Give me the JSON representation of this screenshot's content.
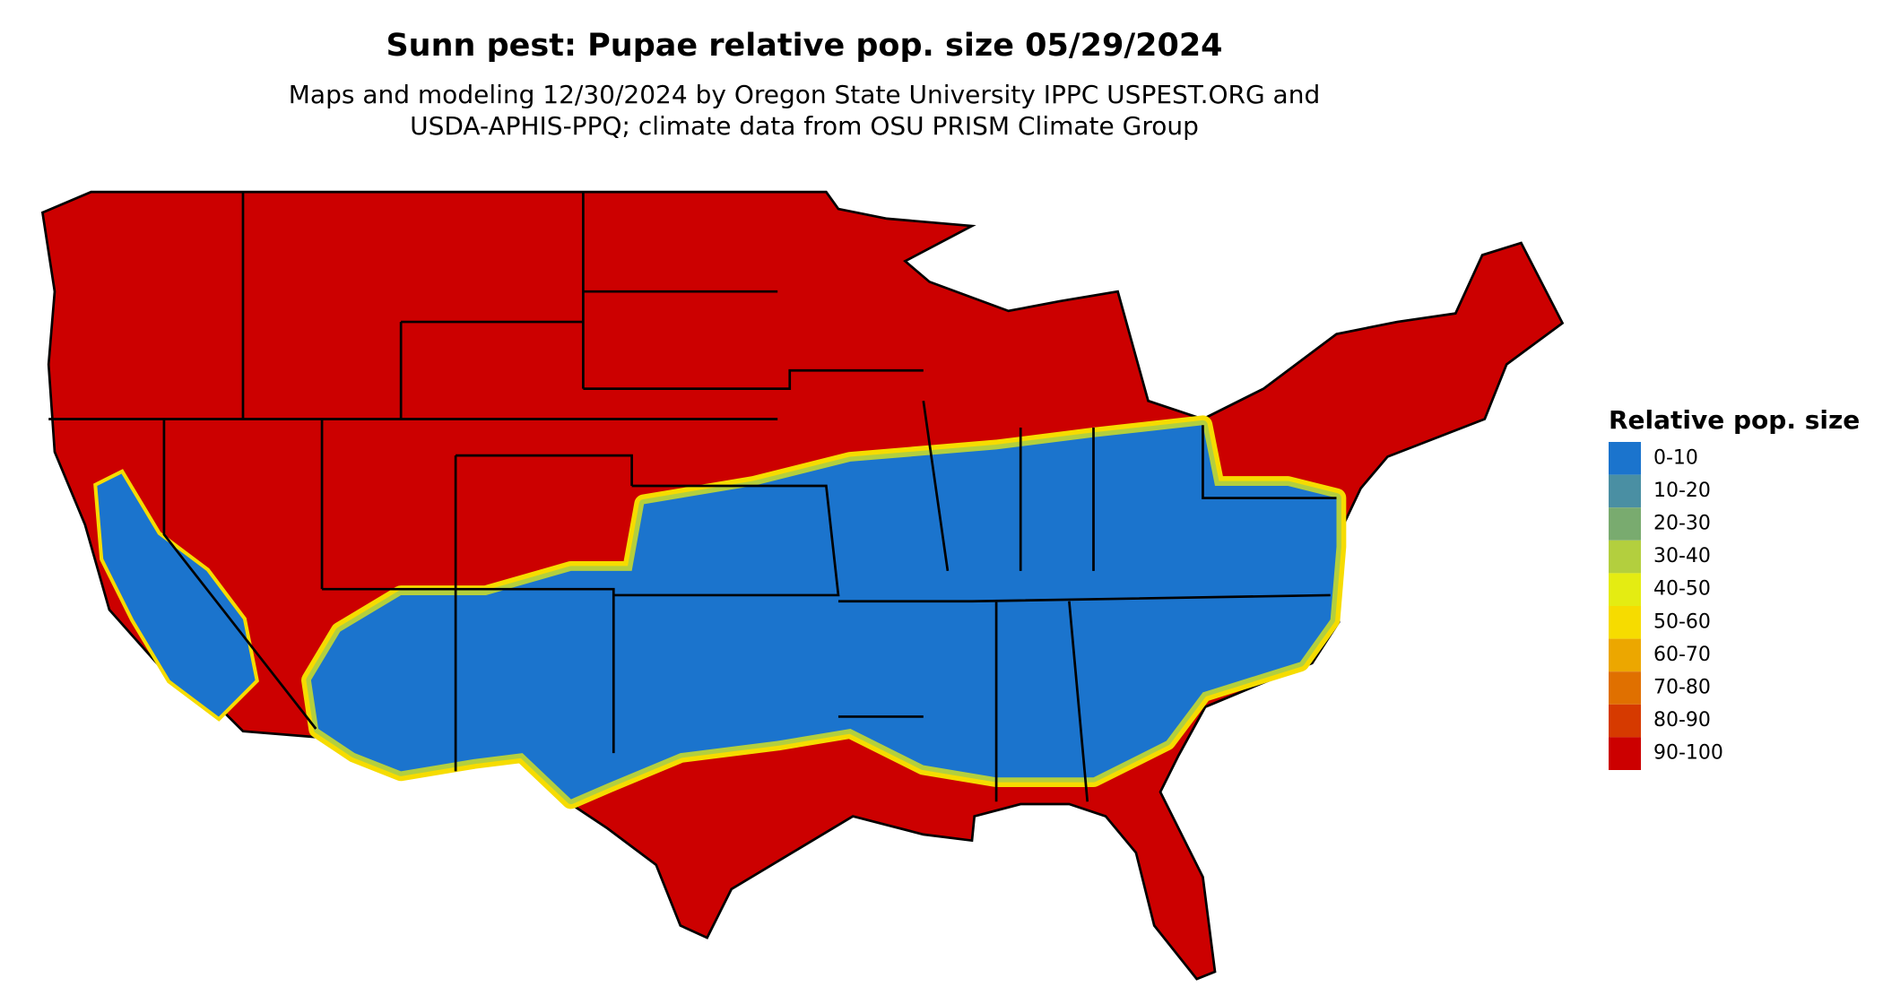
{
  "title": "Sunn pest: Pupae relative pop. size 05/29/2024",
  "subtitle": [
    "Maps and modeling 12/30/2024 by Oregon State University IPPC USPEST.ORG and",
    "USDA-APHIS-PPQ; climate data from OSU PRISM Climate Group"
  ],
  "legend": {
    "title": "Relative pop. size",
    "items": [
      {
        "label": "0-10",
        "color": "#1b74cd"
      },
      {
        "label": "10-20",
        "color": "#4a8fa3"
      },
      {
        "label": "20-30",
        "color": "#79ab6f"
      },
      {
        "label": "30-40",
        "color": "#b3cf3e"
      },
      {
        "label": "40-50",
        "color": "#e4ec12"
      },
      {
        "label": "50-60",
        "color": "#f6dc00"
      },
      {
        "label": "60-70",
        "color": "#eca700"
      },
      {
        "label": "70-80",
        "color": "#e07000"
      },
      {
        "label": "80-90",
        "color": "#d63a00"
      },
      {
        "label": "90-100",
        "color": "#cc0000"
      }
    ]
  }
}
